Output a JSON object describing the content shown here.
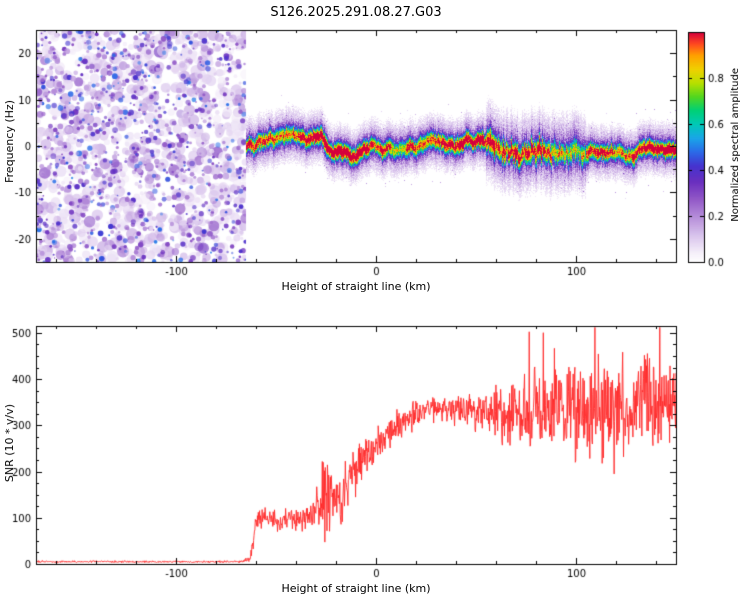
{
  "title": "S126.2025.291.08.27.G03",
  "chart_data": [
    {
      "type": "heatmap",
      "title": "",
      "xlabel": "Height of straight line (km)",
      "ylabel": "Frequency (Hz)",
      "xlim": [
        -170,
        150
      ],
      "ylim": [
        -25,
        25
      ],
      "xticks": [
        -100,
        0,
        100
      ],
      "x_minor_step": 20,
      "yticks": [
        -20,
        -10,
        0,
        10,
        20
      ],
      "y_minor_step": 5,
      "grid": false,
      "noise_region": {
        "x_start": -170,
        "x_end": -65,
        "description": "random speckle noise, amplitude 0.05-0.45"
      },
      "signal": {
        "x_start": -65,
        "x_end": 150,
        "center_hz": 0,
        "wander_hz": 3,
        "core_amplitude": 0.9,
        "halo_hz": 3.2,
        "disturbed_region_km": [
          55,
          105
        ]
      },
      "colorbar": {
        "label": "Normalized spectral amplitude",
        "ticks": [
          0.0,
          0.2,
          0.4,
          0.6,
          0.8
        ],
        "range": [
          0,
          1
        ]
      },
      "seed": 12345
    },
    {
      "type": "line",
      "title": "",
      "xlabel": "Height of straight line (km)",
      "ylabel": "SNR (10 * v/v)",
      "xlim": [
        -170,
        150
      ],
      "ylim": [
        0,
        515
      ],
      "xticks": [
        -100,
        0,
        100
      ],
      "x_minor_step": 20,
      "yticks": [
        0,
        100,
        200,
        300,
        400,
        500
      ],
      "y_minor_step": 25,
      "grid": false,
      "color": "#ff2a2a",
      "envelope": [
        [
          -170,
          5,
          2.5
        ],
        [
          -68,
          5,
          2.5
        ],
        [
          -63,
          10,
          8
        ],
        [
          -60,
          95,
          35
        ],
        [
          -55,
          105,
          28
        ],
        [
          -48,
          88,
          25
        ],
        [
          -42,
          100,
          30
        ],
        [
          -36,
          92,
          32
        ],
        [
          -30,
          112,
          45
        ],
        [
          -24,
          150,
          115
        ],
        [
          -18,
          135,
          70
        ],
        [
          -12,
          200,
          60
        ],
        [
          -5,
          235,
          55
        ],
        [
          0,
          255,
          45
        ],
        [
          8,
          290,
          45
        ],
        [
          15,
          315,
          40
        ],
        [
          25,
          335,
          30
        ],
        [
          40,
          338,
          35
        ],
        [
          55,
          330,
          55
        ],
        [
          70,
          325,
          95
        ],
        [
          85,
          335,
          120
        ],
        [
          100,
          340,
          130
        ],
        [
          115,
          330,
          140
        ],
        [
          130,
          335,
          135
        ],
        [
          142,
          345,
          120
        ],
        [
          150,
          370,
          90
        ]
      ],
      "spike_region_km": 55,
      "seed": 777
    }
  ],
  "colormap_stops": [
    [
      0.0,
      [
        255,
        255,
        255
      ]
    ],
    [
      0.04,
      [
        246,
        240,
        250
      ]
    ],
    [
      0.12,
      [
        216,
        194,
        236
      ]
    ],
    [
      0.2,
      [
        180,
        140,
        217
      ]
    ],
    [
      0.28,
      [
        143,
        85,
        198
      ]
    ],
    [
      0.35,
      [
        106,
        47,
        191
      ]
    ],
    [
      0.42,
      [
        69,
        51,
        207
      ]
    ],
    [
      0.48,
      [
        43,
        106,
        232
      ]
    ],
    [
      0.54,
      [
        26,
        165,
        232
      ]
    ],
    [
      0.6,
      [
        0,
        201,
        183
      ]
    ],
    [
      0.66,
      [
        0,
        208,
        119
      ]
    ],
    [
      0.72,
      [
        82,
        214,
        31
      ]
    ],
    [
      0.78,
      [
        184,
        224,
        0
      ]
    ],
    [
      0.84,
      [
        240,
        208,
        0
      ]
    ],
    [
      0.9,
      [
        255,
        160,
        0
      ]
    ],
    [
      0.95,
      [
        255,
        72,
        32
      ]
    ],
    [
      1.0,
      [
        212,
        0,
        60
      ]
    ]
  ]
}
